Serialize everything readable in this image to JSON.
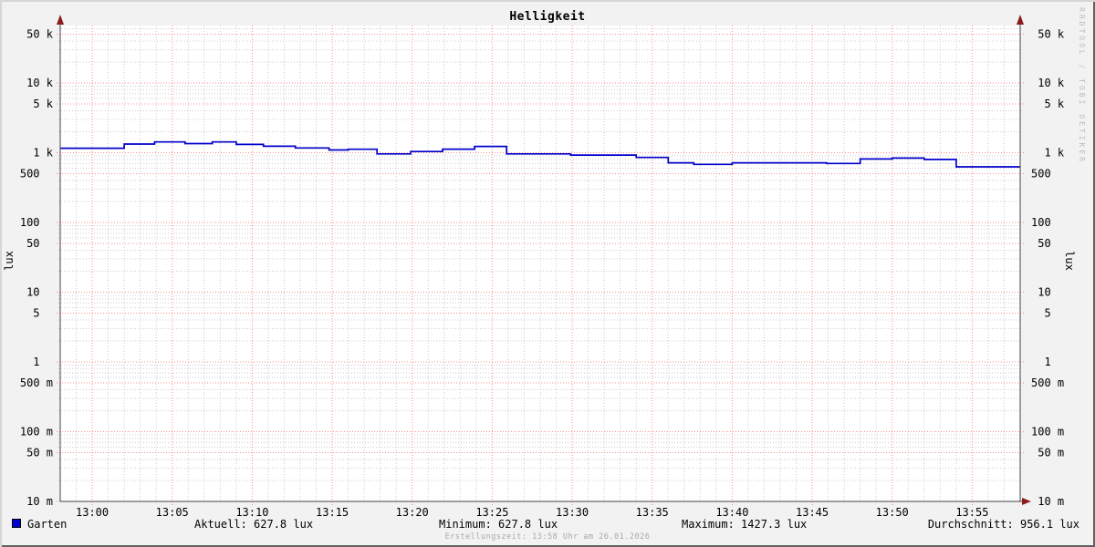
{
  "watermark": "RRDTOOL / TOBI OETIKER",
  "footer": {
    "creation_text": "Erstellungszeit: 13:58 Uhr am 26.01.2026"
  },
  "legend": {
    "series_label": "Garten",
    "series_color": "#0000d0",
    "stats": {
      "aktuell": "Aktuell: 627.8 lux",
      "minimum": "Minimum: 627.8 lux",
      "maximum": "Maximum: 1427.3 lux",
      "durchschnitt": "Durchschnitt: 956.1 lux"
    }
  },
  "chart_data": {
    "type": "line",
    "title": "Helligkeit",
    "ylabel": "lux",
    "y2label": "lux",
    "y_scale": "log",
    "y_range": [
      0.01,
      67000
    ],
    "x_start": "12:58",
    "x_end": "13:58",
    "x_span_minutes": 60,
    "grid": {
      "major_color": "#ff0000",
      "minor_color": "#9a9aaa",
      "x_major_every_minutes": 5,
      "x_minor_every_minutes": 1
    },
    "legend_position": "bottom",
    "x_ticks": [
      {
        "label": "13:00",
        "minute": 2
      },
      {
        "label": "13:05",
        "minute": 7
      },
      {
        "label": "13:10",
        "minute": 12
      },
      {
        "label": "13:15",
        "minute": 17
      },
      {
        "label": "13:20",
        "minute": 22
      },
      {
        "label": "13:25",
        "minute": 27
      },
      {
        "label": "13:30",
        "minute": 32
      },
      {
        "label": "13:35",
        "minute": 37
      },
      {
        "label": "13:40",
        "minute": 42
      },
      {
        "label": "13:45",
        "minute": 47
      },
      {
        "label": "13:50",
        "minute": 52
      },
      {
        "label": "13:55",
        "minute": 57
      }
    ],
    "y_ticks": [
      {
        "value": 50000,
        "label": "50 k"
      },
      {
        "value": 10000,
        "label": "10 k"
      },
      {
        "value": 5000,
        "label": "5 k"
      },
      {
        "value": 1000,
        "label": "1 k"
      },
      {
        "value": 500,
        "label": "500"
      },
      {
        "value": 100,
        "label": "100"
      },
      {
        "value": 50,
        "label": "50"
      },
      {
        "value": 10,
        "label": "10"
      },
      {
        "value": 5,
        "label": "5"
      },
      {
        "value": 1,
        "label": "1"
      },
      {
        "value": 0.5,
        "label": "500 m"
      },
      {
        "value": 0.1,
        "label": "100 m"
      },
      {
        "value": 0.05,
        "label": "50 m"
      },
      {
        "value": 0.01,
        "label": "10 m"
      }
    ],
    "series": [
      {
        "name": "Garten",
        "color": "#0000cc",
        "unit": "lux",
        "end_minute": 60,
        "steps": [
          [
            0,
            1160
          ],
          [
            4,
            1330
          ],
          [
            5.9,
            1427.3
          ],
          [
            7.8,
            1350
          ],
          [
            9.5,
            1427.3
          ],
          [
            11,
            1316
          ],
          [
            12.7,
            1240
          ],
          [
            14.7,
            1170
          ],
          [
            16.8,
            1093
          ],
          [
            18,
            1120
          ],
          [
            19.8,
            962
          ],
          [
            21.9,
            1040
          ],
          [
            23.9,
            1125
          ],
          [
            25.9,
            1230
          ],
          [
            27.9,
            962
          ],
          [
            31.9,
            925
          ],
          [
            36,
            855
          ],
          [
            38,
            715
          ],
          [
            39.6,
            681
          ],
          [
            42,
            715
          ],
          [
            47.9,
            700
          ],
          [
            50,
            813
          ],
          [
            52,
            838
          ],
          [
            54,
            800
          ],
          [
            56,
            627.8
          ]
        ]
      }
    ],
    "stats": {
      "aktuell_lux": 627.8,
      "minimum_lux": 627.8,
      "maximum_lux": 1427.3,
      "durchschnitt_lux": 956.1
    }
  }
}
